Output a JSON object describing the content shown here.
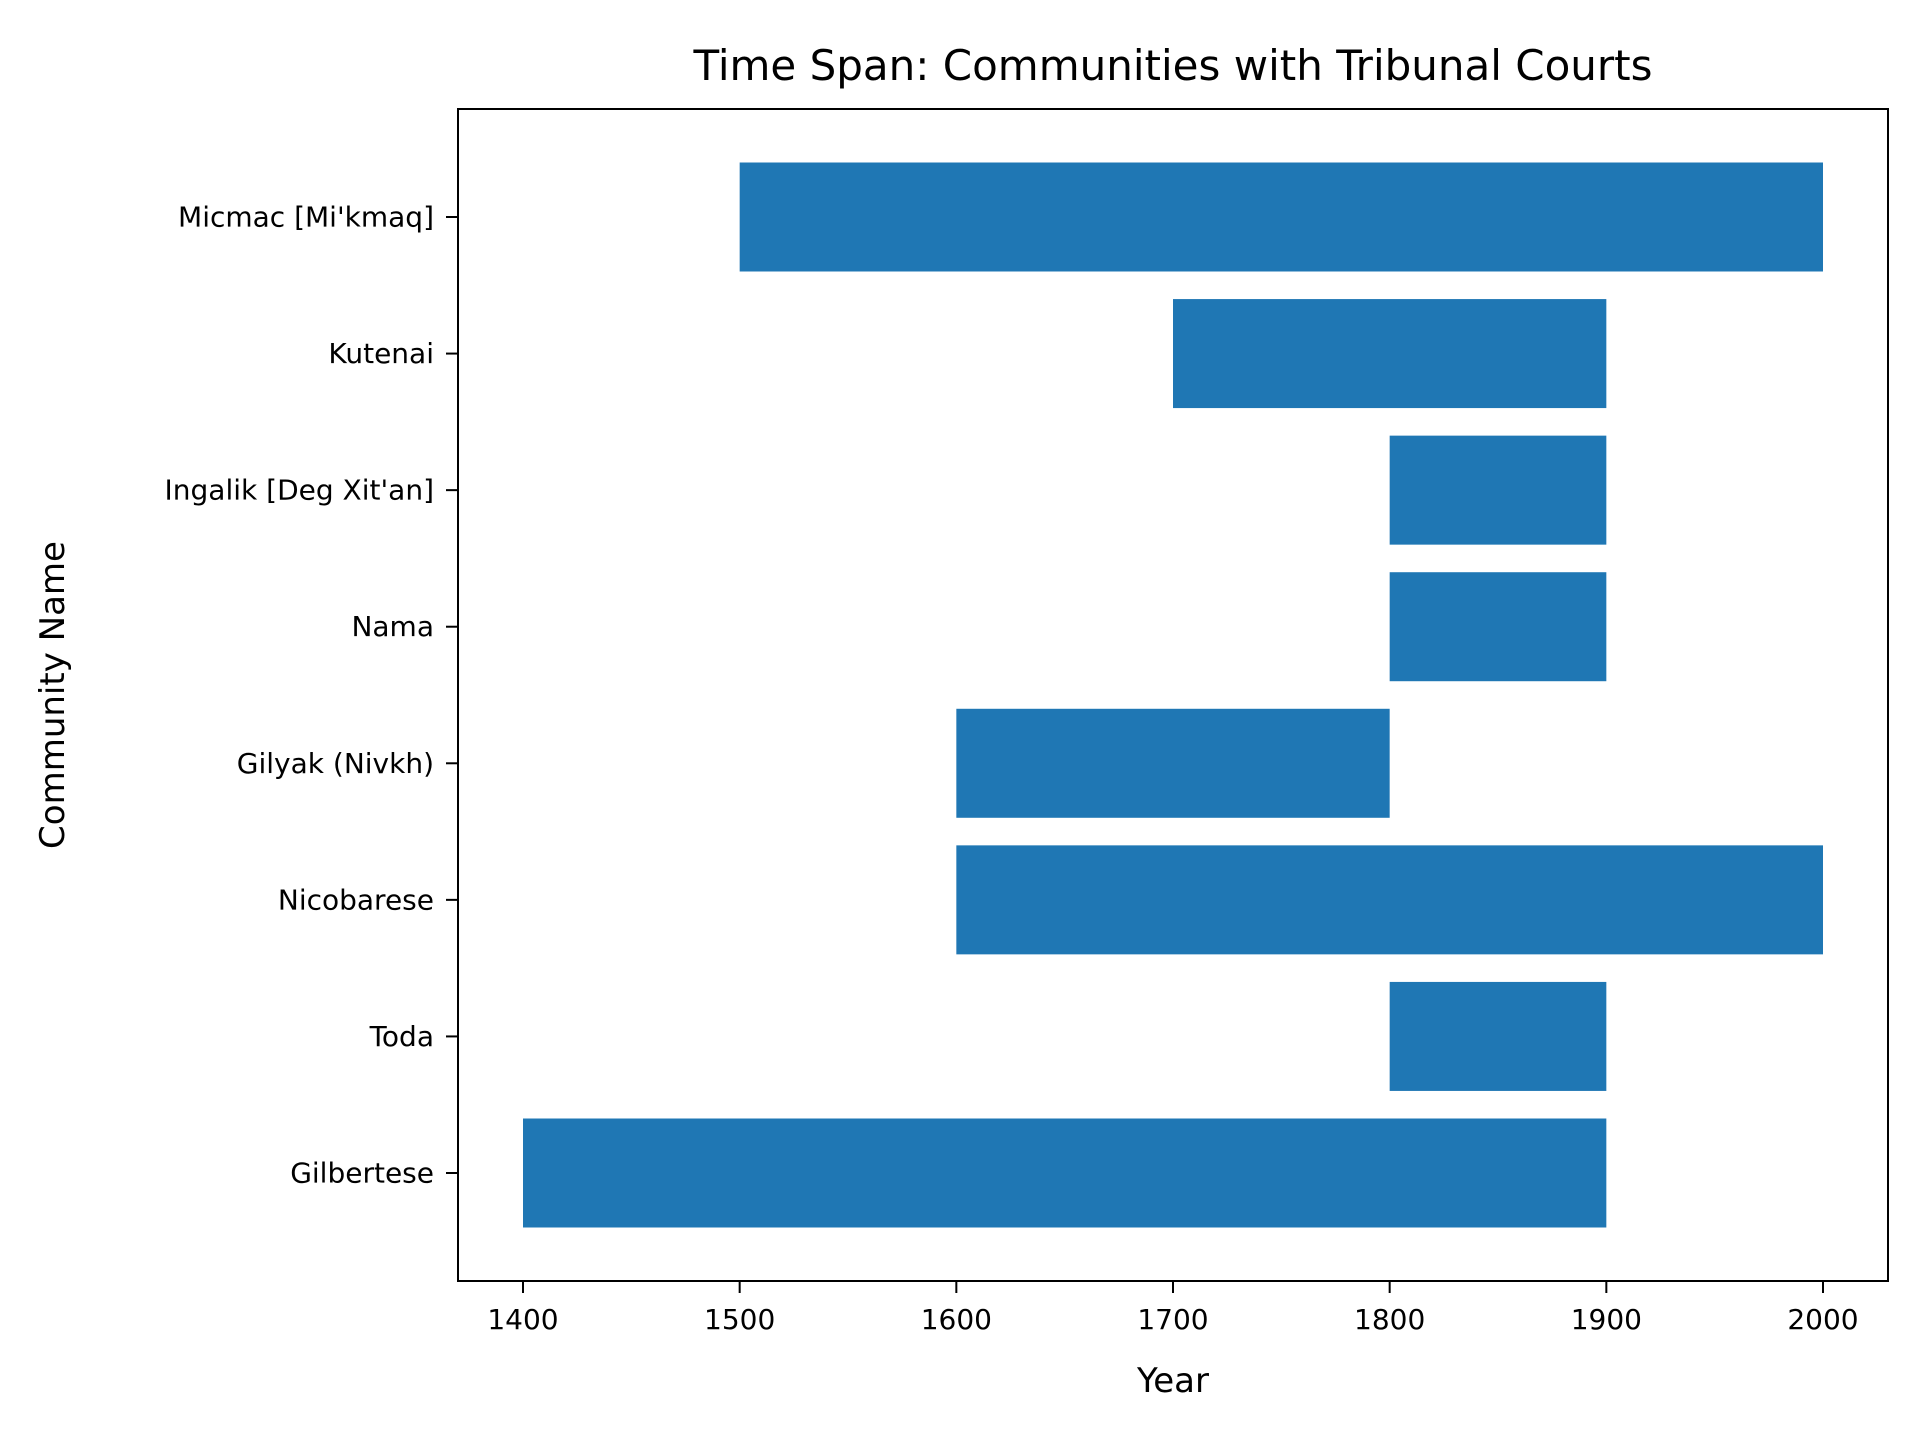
{
  "chart_data": {
    "type": "bar",
    "orientation": "horizontal",
    "title": "Time Span: Communities with Tribunal Courts",
    "xlabel": "Year",
    "ylabel": "Community Name",
    "categories": [
      "Micmac [Mi'kmaq]",
      "Kutenai",
      "Ingalik [Deg Xit'an]",
      "Nama",
      "Gilyak (Nivkh)",
      "Nicobarese",
      "Toda",
      "Gilbertese"
    ],
    "series": [
      {
        "start": [
          1500,
          1700,
          1800,
          1800,
          1600,
          1600,
          1800,
          1400
        ],
        "end": [
          2000,
          1900,
          1900,
          1900,
          1800,
          2000,
          1900,
          1900
        ],
        "color": "#1f77b4"
      }
    ],
    "xlim": [
      1370,
      2030
    ],
    "xticks": [
      "1400",
      "1500",
      "1600",
      "1700",
      "1800",
      "1900",
      "2000"
    ],
    "grid": false,
    "legend": "none"
  }
}
